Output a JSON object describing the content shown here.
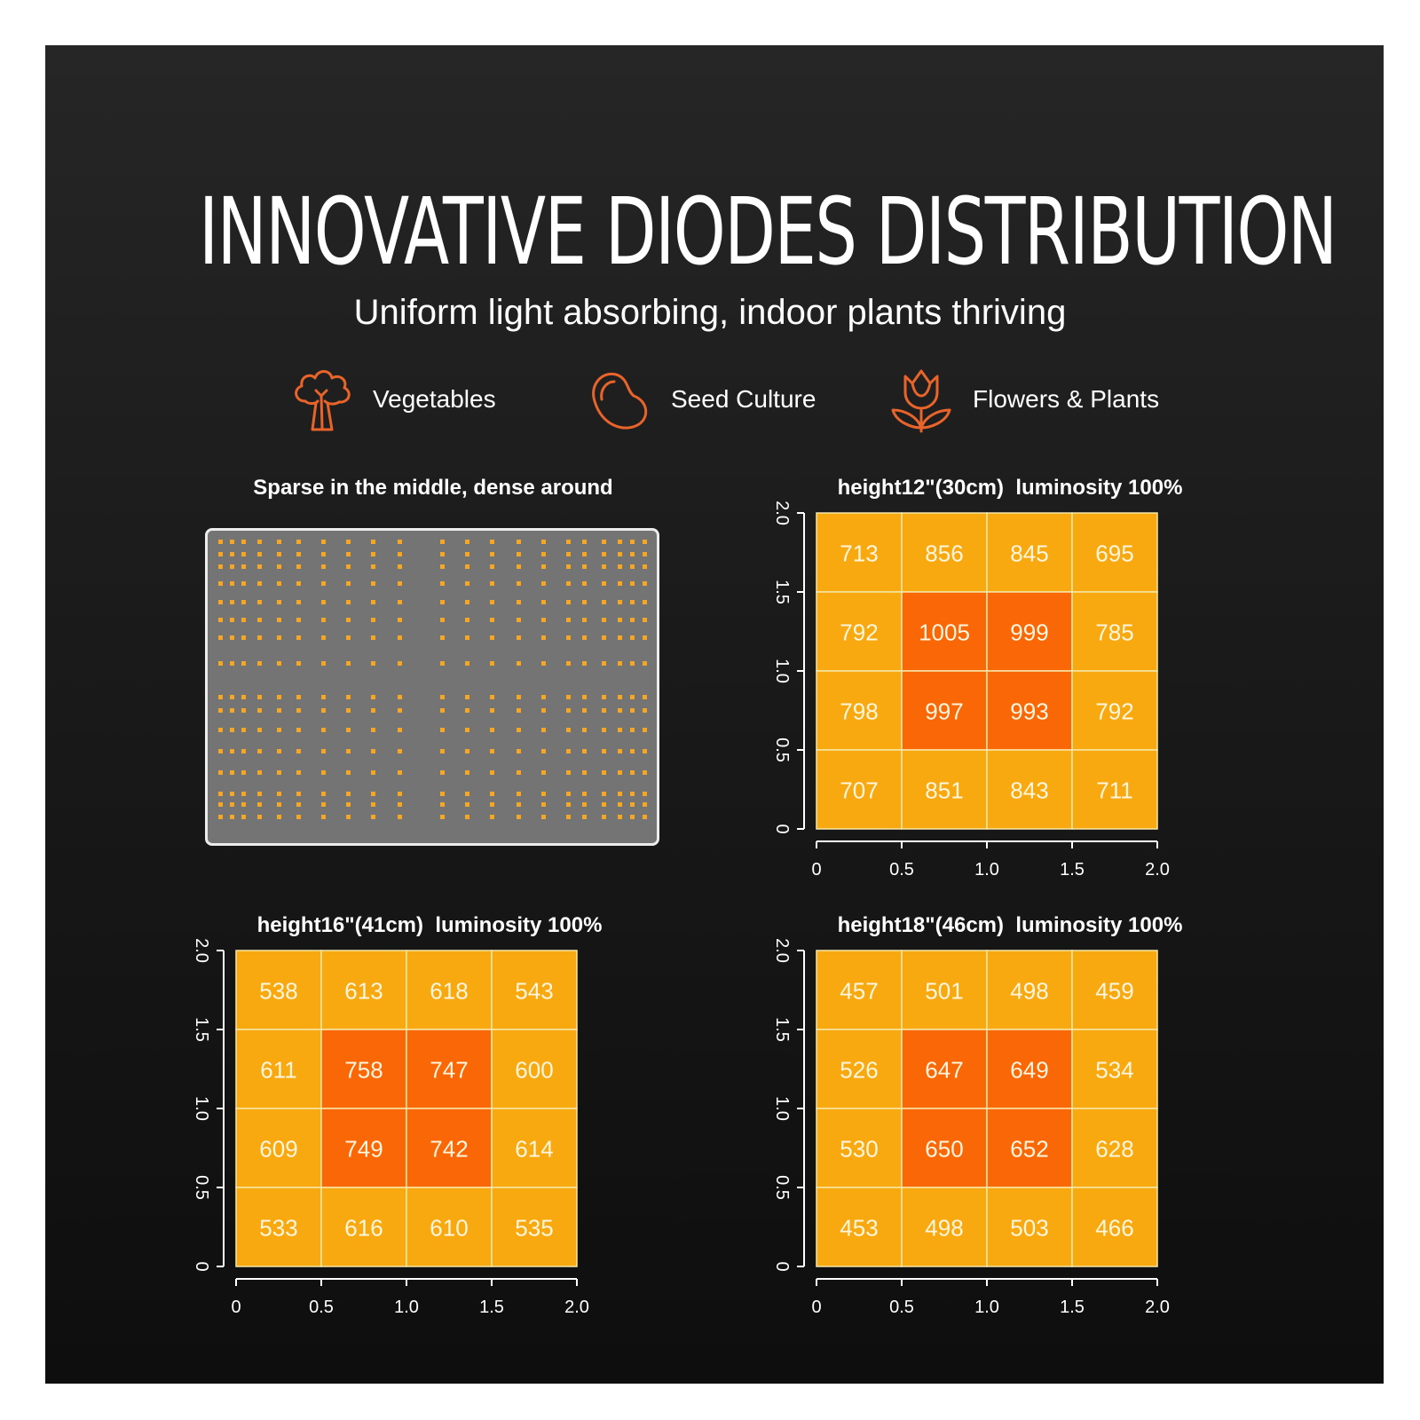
{
  "header": {
    "title": "INNOVATIVE DIODES DISTRIBUTION",
    "subtitle": "Uniform light absorbing, indoor plants thriving"
  },
  "categories": [
    {
      "label": "Vegetables",
      "icon": "broccoli-icon"
    },
    {
      "label": "Seed Culture",
      "icon": "seed-icon"
    },
    {
      "label": "Flowers & Plants",
      "icon": "flower-icon"
    }
  ],
  "board": {
    "title": "Sparse in the middle, dense around",
    "led_color": "#f5a623"
  },
  "colors": {
    "high": "#f96706",
    "normal": "#f8a90f",
    "grid_line": "#f6e7a8",
    "accent_icon": "#e8642a"
  },
  "chart_data": [
    {
      "type": "heatmap",
      "title": "height12\"(30cm)  luminosity 100%",
      "xlim": [
        0,
        2.0
      ],
      "ylim": [
        0,
        2.0
      ],
      "x_ticks": [
        "0",
        "0.5",
        "1.0",
        "1.5",
        "2.0"
      ],
      "y_ticks": [
        "0",
        "0.5",
        "1.0",
        "1.5",
        "2.0"
      ],
      "rows_top_to_bottom": [
        [
          713,
          856,
          845,
          695
        ],
        [
          792,
          1005,
          999,
          785
        ],
        [
          798,
          997,
          993,
          792
        ],
        [
          707,
          851,
          843,
          711
        ]
      ]
    },
    {
      "type": "heatmap",
      "title": "height16\"(41cm)  luminosity 100%",
      "xlim": [
        0,
        2.0
      ],
      "ylim": [
        0,
        2.0
      ],
      "x_ticks": [
        "0",
        "0.5",
        "1.0",
        "1.5",
        "2.0"
      ],
      "y_ticks": [
        "0",
        "0.5",
        "1.0",
        "1.5",
        "2.0"
      ],
      "rows_top_to_bottom": [
        [
          538,
          613,
          618,
          543
        ],
        [
          611,
          758,
          747,
          600
        ],
        [
          609,
          749,
          742,
          614
        ],
        [
          533,
          616,
          610,
          535
        ]
      ]
    },
    {
      "type": "heatmap",
      "title": "height18\"(46cm)  luminosity 100%",
      "xlim": [
        0,
        2.0
      ],
      "ylim": [
        0,
        2.0
      ],
      "x_ticks": [
        "0",
        "0.5",
        "1.0",
        "1.5",
        "2.0"
      ],
      "y_ticks": [
        "0",
        "0.5",
        "1.0",
        "1.5",
        "2.0"
      ],
      "rows_top_to_bottom": [
        [
          457,
          501,
          498,
          459
        ],
        [
          526,
          647,
          649,
          534
        ],
        [
          530,
          650,
          652,
          628
        ],
        [
          453,
          498,
          503,
          466
        ]
      ]
    }
  ]
}
